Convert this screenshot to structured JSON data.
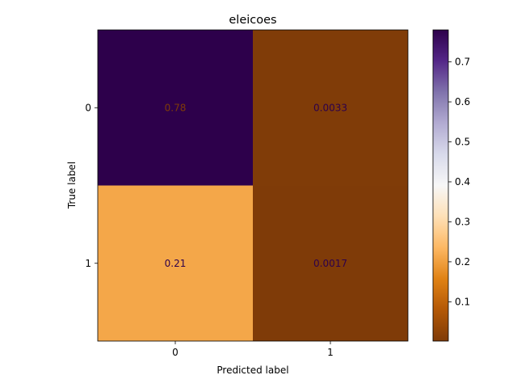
{
  "chart_data": {
    "type": "heatmap",
    "title": "eleicoes",
    "xlabel": "Predicted label",
    "ylabel": "True label",
    "x_categories": [
      "0",
      "1"
    ],
    "y_categories": [
      "0",
      "1"
    ],
    "values": [
      [
        0.78,
        0.0033
      ],
      [
        0.21,
        0.0017
      ]
    ],
    "cell_labels": [
      [
        "0.78",
        "0.0033"
      ],
      [
        "0.21",
        "0.0017"
      ]
    ],
    "colormap": "PuOr",
    "colorbar": {
      "range": [
        0.0017,
        0.78
      ],
      "ticks": [
        0.1,
        0.2,
        0.3,
        0.4,
        0.5,
        0.6,
        0.7
      ],
      "tick_labels": [
        "0.1",
        "0.2",
        "0.3",
        "0.4",
        "0.5",
        "0.6",
        "0.7"
      ]
    },
    "grid": false
  }
}
